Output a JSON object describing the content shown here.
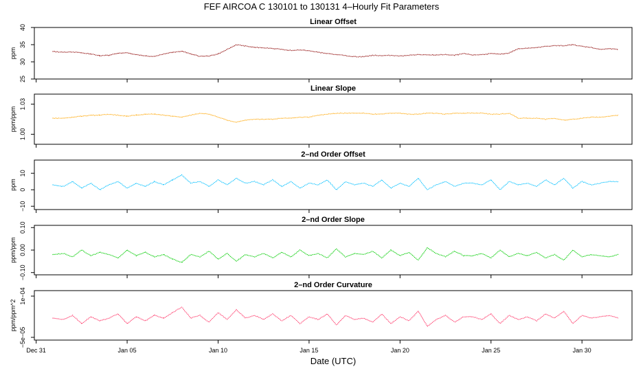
{
  "page": {
    "title": "FEF   AIRCOA C   130101 to 130131   4–Hourly Fit Parameters",
    "xlabel": "Date (UTC)"
  },
  "chart_data": [
    {
      "type": "line",
      "title": "Linear Offset",
      "ylabel": "ppm",
      "ylim": [
        25,
        40
      ],
      "yticks": [
        {
          "v": 25,
          "label": "25"
        },
        {
          "v": 30,
          "label": "30"
        },
        {
          "v": 35,
          "label": "35"
        },
        {
          "v": 40,
          "label": "40"
        }
      ],
      "color": "#8b0000",
      "xlim": [
        0,
        32
      ],
      "x": [
        0.9,
        1.5,
        2,
        2.5,
        3,
        3.5,
        4,
        4.5,
        5,
        5.5,
        6,
        6.5,
        7,
        7.5,
        8,
        8.5,
        9,
        9.5,
        10,
        10.5,
        11,
        11.5,
        12,
        12.5,
        13,
        13.5,
        14,
        14.5,
        15,
        15.5,
        16,
        16.5,
        17,
        17.5,
        18,
        18.5,
        19,
        19.5,
        20,
        20.5,
        21,
        21.5,
        22,
        22.5,
        23,
        23.5,
        24,
        24.5,
        25,
        25.5,
        26,
        26.5,
        27,
        27.5,
        28,
        28.5,
        29,
        29.5,
        30,
        30.5,
        31,
        31.5,
        32
      ],
      "y": [
        33,
        32.8,
        32.9,
        32.6,
        32.3,
        31.8,
        31.9,
        32.5,
        32.6,
        32.1,
        31.7,
        31.6,
        32.3,
        32.8,
        33.1,
        32.3,
        31.6,
        31.7,
        32.3,
        33.6,
        35,
        34.6,
        34.2,
        34.1,
        33.9,
        33.6,
        33.3,
        33.5,
        33.2,
        32.8,
        32.4,
        32.1,
        31.8,
        31.5,
        31.5,
        31.9,
        31.8,
        31.9,
        31.7,
        31.9,
        32.1,
        32.0,
        32.0,
        32.1,
        31.9,
        32.4,
        32.0,
        32.1,
        32.4,
        32.2,
        32.6,
        33.8,
        34.0,
        34.1,
        34.5,
        34.7,
        34.7,
        35.0,
        34.5,
        34.2,
        33.6,
        33.8,
        33.6
      ]
    },
    {
      "type": "line",
      "title": "Linear Slope",
      "ylabel": "ppm/ppm",
      "ylim": [
        0.99,
        1.04
      ],
      "yticks": [
        {
          "v": 1.0,
          "label": "1.00"
        },
        {
          "v": 1.03,
          "label": "1.03"
        }
      ],
      "color": "#ffa500",
      "xlim": [
        0,
        32
      ],
      "x": [
        0.9,
        1.5,
        2,
        2.5,
        3,
        3.5,
        4,
        4.5,
        5,
        5.5,
        6,
        6.5,
        7,
        7.5,
        8,
        8.5,
        9,
        9.5,
        10,
        10.5,
        11,
        11.5,
        12,
        12.5,
        13,
        13.5,
        14,
        14.5,
        15,
        15.5,
        16,
        16.5,
        17,
        17.5,
        18,
        18.5,
        19,
        19.5,
        20,
        20.5,
        21,
        21.5,
        22,
        22.5,
        23,
        23.5,
        24,
        24.5,
        25,
        25.5,
        26,
        26.5,
        27,
        27.5,
        28,
        28.5,
        29,
        29.5,
        30,
        30.5,
        31,
        31.5,
        32
      ],
      "y": [
        1.016,
        1.016,
        1.017,
        1.018,
        1.019,
        1.019,
        1.02,
        1.019,
        1.018,
        1.019,
        1.02,
        1.02,
        1.019,
        1.018,
        1.017,
        1.019,
        1.021,
        1.02,
        1.017,
        1.014,
        1.012,
        1.014,
        1.015,
        1.015,
        1.015,
        1.016,
        1.016,
        1.017,
        1.017,
        1.019,
        1.02,
        1.021,
        1.021,
        1.021,
        1.021,
        1.02,
        1.02,
        1.021,
        1.021,
        1.02,
        1.02,
        1.021,
        1.021,
        1.02,
        1.021,
        1.021,
        1.021,
        1.021,
        1.02,
        1.02,
        1.021,
        1.016,
        1.016,
        1.016,
        1.015,
        1.016,
        1.014,
        1.015,
        1.016,
        1.017,
        1.017,
        1.018,
        1.019
      ]
    },
    {
      "type": "line",
      "title": "2–nd Order Offset",
      "ylabel": "ppm",
      "ylim": [
        -12,
        18
      ],
      "yticks": [
        {
          "v": -10,
          "label": "−10"
        },
        {
          "v": 0,
          "label": "0"
        },
        {
          "v": 10,
          "label": "10"
        }
      ],
      "color": "#00bfff",
      "xlim": [
        0,
        32
      ],
      "x": [
        0.9,
        1.5,
        2,
        2.5,
        3,
        3.5,
        4,
        4.5,
        5,
        5.5,
        6,
        6.5,
        7,
        7.5,
        8,
        8.5,
        9,
        9.5,
        10,
        10.5,
        11,
        11.5,
        12,
        12.5,
        13,
        13.5,
        14,
        14.5,
        15,
        15.5,
        16,
        16.5,
        17,
        17.5,
        18,
        18.5,
        19,
        19.5,
        20,
        20.5,
        21,
        21.5,
        22,
        22.5,
        23,
        23.5,
        24,
        24.5,
        25,
        25.5,
        26,
        26.5,
        27,
        27.5,
        28,
        28.5,
        29,
        29.5,
        30,
        30.5,
        31,
        31.5,
        32
      ],
      "y": [
        3,
        2,
        5,
        1,
        4,
        0,
        3,
        5,
        1,
        4,
        2,
        5,
        3,
        6,
        9,
        4,
        5,
        2,
        6,
        3,
        7,
        4,
        5,
        3,
        6,
        2,
        5,
        1,
        4,
        3,
        6,
        0,
        5,
        3,
        4,
        2,
        6,
        1,
        4,
        2,
        7,
        0,
        3,
        5,
        2,
        4,
        4,
        3,
        6,
        0,
        5,
        3,
        4,
        2,
        6,
        3,
        7,
        1,
        5,
        3,
        4,
        5,
        5
      ]
    },
    {
      "type": "line",
      "title": "2–nd Order Slope",
      "ylabel": "ppm/ppm",
      "ylim": [
        -0.11,
        0.11
      ],
      "yticks": [
        {
          "v": -0.1,
          "label": "−0.10"
        },
        {
          "v": 0,
          "label": "0.00"
        },
        {
          "v": 0.1,
          "label": "0.10"
        }
      ],
      "color": "#00cc00",
      "xlim": [
        0,
        32
      ],
      "x": [
        0.9,
        1.5,
        2,
        2.5,
        3,
        3.5,
        4,
        4.5,
        5,
        5.5,
        6,
        6.5,
        7,
        7.5,
        8,
        8.5,
        9,
        9.5,
        10,
        10.5,
        11,
        11.5,
        12,
        12.5,
        13,
        13.5,
        14,
        14.5,
        15,
        15.5,
        16,
        16.5,
        17,
        17.5,
        18,
        18.5,
        19,
        19.5,
        20,
        20.5,
        21,
        21.5,
        22,
        22.5,
        23,
        23.5,
        24,
        24.5,
        25,
        25.5,
        26,
        26.5,
        27,
        27.5,
        28,
        28.5,
        29,
        29.5,
        30,
        30.5,
        31,
        31.5,
        32
      ],
      "y": [
        -0.02,
        -0.015,
        -0.03,
        0.0,
        -0.025,
        -0.01,
        -0.02,
        -0.035,
        0.0,
        -0.025,
        -0.01,
        -0.03,
        -0.02,
        -0.04,
        -0.055,
        -0.02,
        -0.03,
        -0.005,
        -0.04,
        -0.015,
        -0.05,
        -0.02,
        -0.03,
        -0.015,
        -0.035,
        -0.01,
        -0.03,
        0.0,
        -0.025,
        -0.015,
        -0.035,
        0.005,
        -0.03,
        -0.015,
        -0.02,
        -0.005,
        -0.035,
        0.0,
        -0.025,
        -0.01,
        -0.045,
        0.01,
        -0.015,
        -0.03,
        -0.005,
        -0.025,
        -0.025,
        -0.015,
        -0.035,
        0.0,
        -0.03,
        -0.015,
        -0.025,
        -0.01,
        -0.035,
        -0.02,
        -0.045,
        0.0,
        -0.03,
        -0.02,
        -0.025,
        -0.03,
        -0.02
      ]
    },
    {
      "type": "line",
      "title": "2–nd Order Curvature",
      "ylabel": "ppm/ppm^2",
      "ylim": [
        -6e-05,
        0.00012
      ],
      "yticks": [
        {
          "v": -5e-05,
          "label": "−5e−05"
        },
        {
          "v": 0.0001,
          "label": "1e−04"
        }
      ],
      "color": "#ff3366",
      "xlim": [
        0,
        32
      ],
      "x": [
        0.9,
        1.5,
        2,
        2.5,
        3,
        3.5,
        4,
        4.5,
        5,
        5.5,
        6,
        6.5,
        7,
        7.5,
        8,
        8.5,
        9,
        9.5,
        10,
        10.5,
        11,
        11.5,
        12,
        12.5,
        13,
        13.5,
        14,
        14.5,
        15,
        15.5,
        16,
        16.5,
        17,
        17.5,
        18,
        18.5,
        19,
        19.5,
        20,
        20.5,
        21,
        21.5,
        22,
        22.5,
        23,
        23.5,
        24,
        24.5,
        25,
        25.5,
        26,
        26.5,
        27,
        27.5,
        28,
        28.5,
        29,
        29.5,
        30,
        30.5,
        31,
        31.5,
        32
      ],
      "y": [
        2e-05,
        1.5e-05,
        3e-05,
        0,
        2.5e-05,
        1e-05,
        2e-05,
        3.5e-05,
        0,
        2.5e-05,
        1e-05,
        3e-05,
        2e-05,
        4e-05,
        6e-05,
        2e-05,
        3e-05,
        5e-06,
        4e-05,
        1.5e-05,
        5e-05,
        2e-05,
        3e-05,
        1.5e-05,
        3.5e-05,
        1e-05,
        3e-05,
        0,
        2.5e-05,
        1.5e-05,
        3.5e-05,
        -5e-06,
        3e-05,
        1.5e-05,
        2e-05,
        5e-06,
        3.5e-05,
        0,
        2.5e-05,
        1e-05,
        4.5e-05,
        -1e-05,
        1.5e-05,
        3e-05,
        5e-06,
        2.5e-05,
        2.5e-05,
        1.5e-05,
        3.5e-05,
        0,
        3e-05,
        1.5e-05,
        2.5e-05,
        1e-05,
        3.5e-05,
        2e-05,
        4.5e-05,
        0,
        3e-05,
        2e-05,
        2.5e-05,
        3e-05,
        2e-05
      ]
    }
  ],
  "x_ticks": [
    {
      "v": 0,
      "label": "Dec 31"
    },
    {
      "v": 5,
      "label": "Jan 05"
    },
    {
      "v": 10,
      "label": "Jan 10"
    },
    {
      "v": 15,
      "label": "Jan 15"
    },
    {
      "v": 20,
      "label": "Jan 20"
    },
    {
      "v": 25,
      "label": "Jan 25"
    },
    {
      "v": 30,
      "label": "Jan 30"
    }
  ]
}
